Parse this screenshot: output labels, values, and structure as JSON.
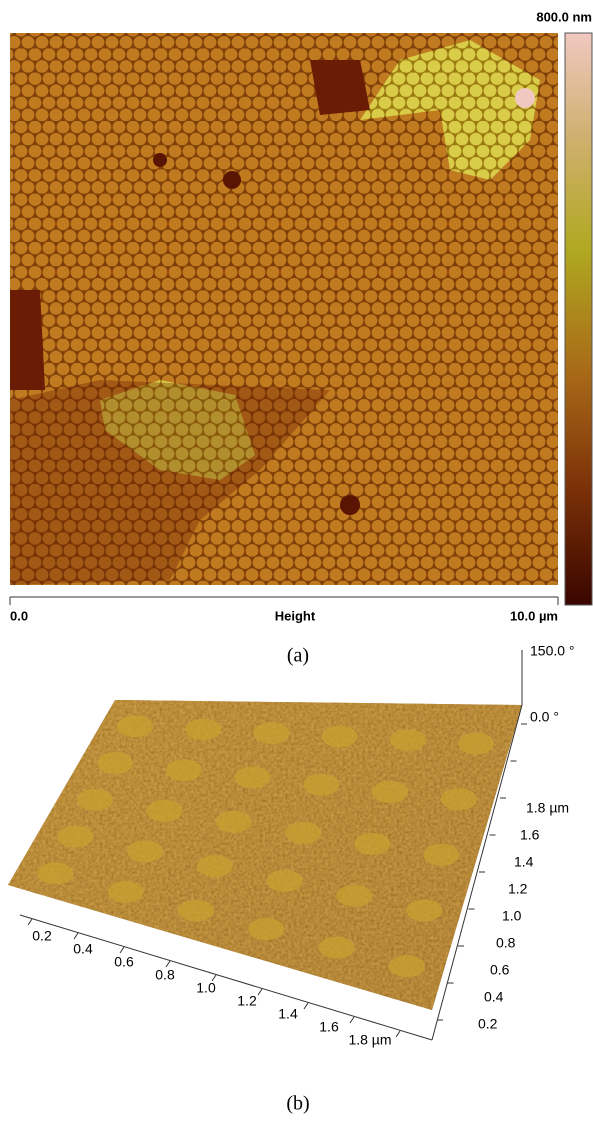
{
  "panel_a": {
    "scale_max": "800.0 nm",
    "axis_start": "0.0",
    "axis_label": "Height",
    "axis_end": "10.0 µm",
    "caption": "(a)"
  },
  "panel_b": {
    "z_labels": [
      "150.0 °",
      "0.0 °"
    ],
    "x_labels": [
      "0.2",
      "0.4",
      "0.6",
      "0.8",
      "1.0",
      "1.2",
      "1.4",
      "1.6",
      "1.8 µm"
    ],
    "y_labels": [
      "0.2",
      "0.4",
      "0.6",
      "0.8",
      "1.0",
      "1.2",
      "1.4",
      "1.6",
      "1.8 µm"
    ],
    "caption": "(b)"
  }
}
